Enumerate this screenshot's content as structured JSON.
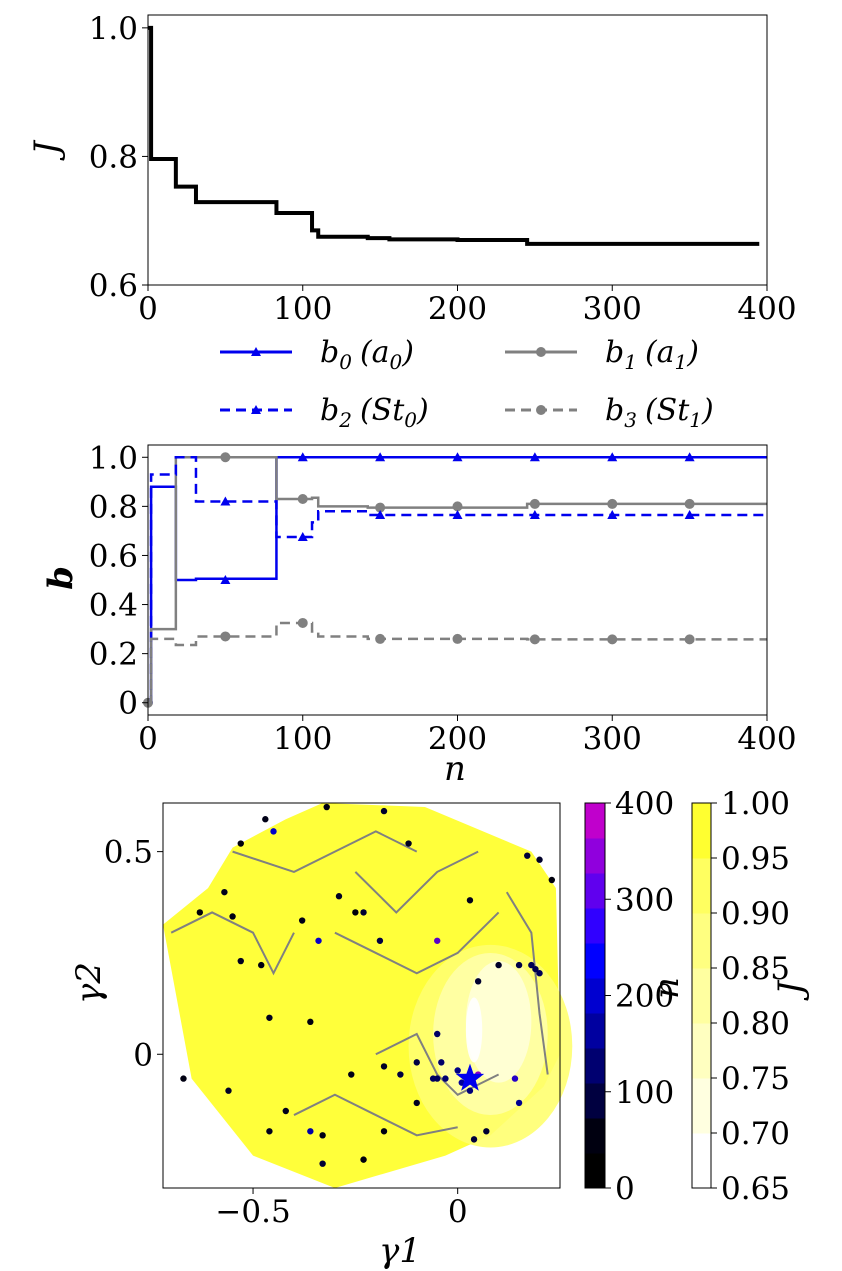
{
  "chart_data": [
    {
      "type": "line",
      "title": "",
      "xlabel": "",
      "ylabel": "J",
      "xlim": [
        0,
        400
      ],
      "ylim": [
        0.6,
        1.02
      ],
      "xticks": [
        "0",
        "100",
        "200",
        "300",
        "400"
      ],
      "yticks": [
        "0.6",
        "0.8",
        "1.0"
      ],
      "series": [
        {
          "name": "J",
          "color": "#000000",
          "style": "step",
          "x": [
            0,
            2,
            18,
            31,
            83,
            106,
            110,
            142,
            156,
            200,
            245,
            395
          ],
          "y": [
            1.0,
            0.796,
            0.753,
            0.729,
            0.712,
            0.685,
            0.675,
            0.673,
            0.671,
            0.67,
            0.664,
            0.664
          ]
        }
      ]
    },
    {
      "type": "line",
      "title": "",
      "xlabel": "n",
      "ylabel": "b",
      "xlim": [
        0,
        400
      ],
      "ylim": [
        -0.05,
        1.05
      ],
      "xticks": [
        "0",
        "100",
        "200",
        "300",
        "400"
      ],
      "yticks": [
        "0",
        "0.2",
        "0.4",
        "0.6",
        "0.8",
        "1.0"
      ],
      "legend": {
        "placement": "above-center",
        "columns": 2
      },
      "series": [
        {
          "name": "b0 (a0)",
          "legend_main": "b",
          "legend_sub": "0",
          "legend_paren": "(a",
          "legend_paren_sub": "0",
          "legend_close": ")",
          "color": "#0000ee",
          "dash": "solid",
          "marker": "triangle",
          "x": [
            0,
            2,
            18,
            31,
            83,
            400
          ],
          "y": [
            0.0,
            0.88,
            0.5,
            0.505,
            1.0,
            1.0
          ],
          "marker_x": [
            50,
            100,
            150,
            200,
            250,
            300,
            350
          ],
          "marker_y": [
            0.5,
            1.0,
            1.0,
            1.0,
            1.0,
            1.0,
            1.0
          ]
        },
        {
          "name": "b1 (a1)",
          "legend_main": "b",
          "legend_sub": "1",
          "legend_paren": "(a",
          "legend_paren_sub": "1",
          "legend_close": ")",
          "color": "#808080",
          "dash": "solid",
          "marker": "circle",
          "x": [
            0,
            2,
            18,
            83,
            106,
            110,
            142,
            245,
            400
          ],
          "y": [
            0.0,
            0.3,
            1.0,
            0.83,
            0.835,
            0.8,
            0.795,
            0.81,
            0.81
          ],
          "marker_x": [
            0,
            50,
            100,
            150,
            200,
            250,
            300,
            350
          ],
          "marker_y": [
            0.0,
            1.0,
            0.83,
            0.795,
            0.8,
            0.81,
            0.81,
            0.81
          ]
        },
        {
          "name": "b2 (St0)",
          "legend_main": "b",
          "legend_sub": "2",
          "legend_paren": "(St",
          "legend_paren_sub": "0",
          "legend_close": ")",
          "color": "#0000ee",
          "dash": "dashed",
          "marker": "triangle",
          "x": [
            0,
            2,
            18,
            31,
            83,
            106,
            110,
            142,
            400
          ],
          "y": [
            0.0,
            0.93,
            1.0,
            0.82,
            0.675,
            0.735,
            0.78,
            0.765,
            0.765
          ],
          "marker_x": [
            50,
            100,
            150,
            200,
            250,
            300,
            350
          ],
          "marker_y": [
            0.82,
            0.675,
            0.765,
            0.765,
            0.765,
            0.765,
            0.765
          ]
        },
        {
          "name": "b3 (St1)",
          "legend_main": "b",
          "legend_sub": "3",
          "legend_paren": "(St",
          "legend_paren_sub": "1",
          "legend_close": ")",
          "color": "#808080",
          "dash": "dashed",
          "marker": "circle",
          "x": [
            0,
            2,
            18,
            31,
            83,
            106,
            110,
            142,
            245,
            400
          ],
          "y": [
            0.0,
            0.26,
            0.235,
            0.27,
            0.325,
            0.29,
            0.27,
            0.26,
            0.258,
            0.258
          ],
          "marker_x": [
            50,
            100,
            150,
            200,
            250,
            300,
            350
          ],
          "marker_y": [
            0.27,
            0.325,
            0.26,
            0.26,
            0.258,
            0.258,
            0.258
          ]
        }
      ]
    },
    {
      "type": "heatmap",
      "subtype": "contour-scatter",
      "title": "",
      "xlabel": "γ1",
      "ylabel": "γ2",
      "xlim": [
        -0.72,
        0.25
      ],
      "ylim": [
        -0.33,
        0.62
      ],
      "xticks": [
        "−0.5",
        "0"
      ],
      "xtick_values": [
        -0.5,
        0
      ],
      "yticks": [
        "0",
        "0.5"
      ],
      "ytick_values": [
        0,
        0.5
      ],
      "hull": [
        [
          -0.72,
          0.32
        ],
        [
          -0.61,
          0.41
        ],
        [
          -0.55,
          0.51
        ],
        [
          -0.42,
          0.58
        ],
        [
          -0.33,
          0.62
        ],
        [
          -0.08,
          0.61
        ],
        [
          0.18,
          0.5
        ],
        [
          0.24,
          0.41
        ],
        [
          0.25,
          0.0
        ],
        [
          0.21,
          -0.08
        ],
        [
          0.08,
          -0.2
        ],
        [
          -0.03,
          -0.25
        ],
        [
          -0.3,
          -0.33
        ],
        [
          -0.5,
          -0.25
        ],
        [
          -0.65,
          -0.06
        ]
      ],
      "contour_levels": [
        0.65,
        0.7,
        0.75,
        0.8,
        0.85,
        0.9,
        0.95,
        1.0
      ],
      "best_point": {
        "x": 0.03,
        "y": -0.06,
        "marker": "star",
        "color": "#0000ee"
      },
      "points": [
        {
          "x": -0.47,
          "y": 0.58,
          "n": 20
        },
        {
          "x": -0.32,
          "y": 0.61,
          "n": 15
        },
        {
          "x": -0.18,
          "y": 0.6,
          "n": 40
        },
        {
          "x": -0.53,
          "y": 0.52,
          "n": 12
        },
        {
          "x": -0.45,
          "y": 0.55,
          "n": 180
        },
        {
          "x": -0.12,
          "y": 0.52,
          "n": 30
        },
        {
          "x": -0.57,
          "y": 0.4,
          "n": 25
        },
        {
          "x": -0.63,
          "y": 0.35,
          "n": 8
        },
        {
          "x": -0.55,
          "y": 0.34,
          "n": 18
        },
        {
          "x": -0.29,
          "y": 0.39,
          "n": 33
        },
        {
          "x": -0.25,
          "y": 0.35,
          "n": 10
        },
        {
          "x": -0.23,
          "y": 0.35,
          "n": 44
        },
        {
          "x": -0.38,
          "y": 0.33,
          "n": 22
        },
        {
          "x": -0.19,
          "y": 0.28,
          "n": 60
        },
        {
          "x": -0.34,
          "y": 0.28,
          "n": 190
        },
        {
          "x": -0.05,
          "y": 0.28,
          "n": 280
        },
        {
          "x": -0.53,
          "y": 0.23,
          "n": 30
        },
        {
          "x": -0.48,
          "y": 0.22,
          "n": 15
        },
        {
          "x": -0.46,
          "y": 0.09,
          "n": 28
        },
        {
          "x": -0.36,
          "y": 0.08,
          "n": 14
        },
        {
          "x": 0.03,
          "y": 0.38,
          "n": 26
        },
        {
          "x": 0.17,
          "y": 0.49,
          "n": 50
        },
        {
          "x": 0.2,
          "y": 0.48,
          "n": 38
        },
        {
          "x": 0.23,
          "y": 0.43,
          "n": 12
        },
        {
          "x": 0.1,
          "y": 0.22,
          "n": 35
        },
        {
          "x": 0.05,
          "y": 0.18,
          "n": 42
        },
        {
          "x": 0.15,
          "y": 0.22,
          "n": 66
        },
        {
          "x": 0.19,
          "y": 0.21,
          "n": 70
        },
        {
          "x": 0.18,
          "y": 0.22,
          "n": 74
        },
        {
          "x": 0.2,
          "y": 0.2,
          "n": 78
        },
        {
          "x": -0.05,
          "y": 0.05,
          "n": 90
        },
        {
          "x": -0.04,
          "y": -0.02,
          "n": 95
        },
        {
          "x": -0.06,
          "y": -0.06,
          "n": 88
        },
        {
          "x": -0.05,
          "y": -0.06,
          "n": 84
        },
        {
          "x": -0.03,
          "y": -0.06,
          "n": 102
        },
        {
          "x": 0.0,
          "y": -0.04,
          "n": 120
        },
        {
          "x": 0.01,
          "y": -0.07,
          "n": 140
        },
        {
          "x": 0.05,
          "y": -0.05,
          "n": 330
        },
        {
          "x": 0.03,
          "y": -0.09,
          "n": 110
        },
        {
          "x": 0.14,
          "y": -0.06,
          "n": 220
        },
        {
          "x": 0.15,
          "y": -0.12,
          "n": 130
        },
        {
          "x": 0.07,
          "y": -0.19,
          "n": 45
        },
        {
          "x": 0.04,
          "y": -0.21,
          "n": 55
        },
        {
          "x": -0.67,
          "y": -0.06,
          "n": 16
        },
        {
          "x": -0.56,
          "y": -0.09,
          "n": 36
        },
        {
          "x": -0.42,
          "y": -0.14,
          "n": 24
        },
        {
          "x": -0.36,
          "y": -0.19,
          "n": 150
        },
        {
          "x": -0.33,
          "y": -0.2,
          "n": 19
        },
        {
          "x": -0.46,
          "y": -0.19,
          "n": 27
        },
        {
          "x": -0.1,
          "y": -0.12,
          "n": 31
        },
        {
          "x": -0.33,
          "y": -0.27,
          "n": 48
        },
        {
          "x": -0.23,
          "y": -0.26,
          "n": 13
        },
        {
          "x": -0.26,
          "y": -0.05,
          "n": 21
        },
        {
          "x": -0.18,
          "y": -0.03,
          "n": 34
        },
        {
          "x": -0.14,
          "y": -0.05,
          "n": 58
        },
        {
          "x": -0.1,
          "y": -0.02,
          "n": 62
        },
        {
          "x": -0.18,
          "y": -0.19,
          "n": 17
        }
      ]
    }
  ],
  "colorbars": {
    "n": {
      "label": "n",
      "ticks": [
        "0",
        "100",
        "200",
        "300",
        "400"
      ],
      "range": [
        0,
        400
      ],
      "colors": [
        "#000000",
        "#000010",
        "#000040",
        "#000070",
        "#0000a0",
        "#0000d0",
        "#0000ff",
        "#3000ff",
        "#6000ee",
        "#9000dd",
        "#c000cc"
      ]
    },
    "J": {
      "label": "J",
      "ticks": [
        "0.65",
        "0.70",
        "0.75",
        "0.80",
        "0.85",
        "0.90",
        "0.95",
        "1.00"
      ],
      "range": [
        0.65,
        1.0
      ],
      "colors": [
        "#ffffff",
        "#ffffe0",
        "#ffffc0",
        "#ffffa0",
        "#ffff80",
        "#ffff60",
        "#ffff30"
      ]
    }
  }
}
